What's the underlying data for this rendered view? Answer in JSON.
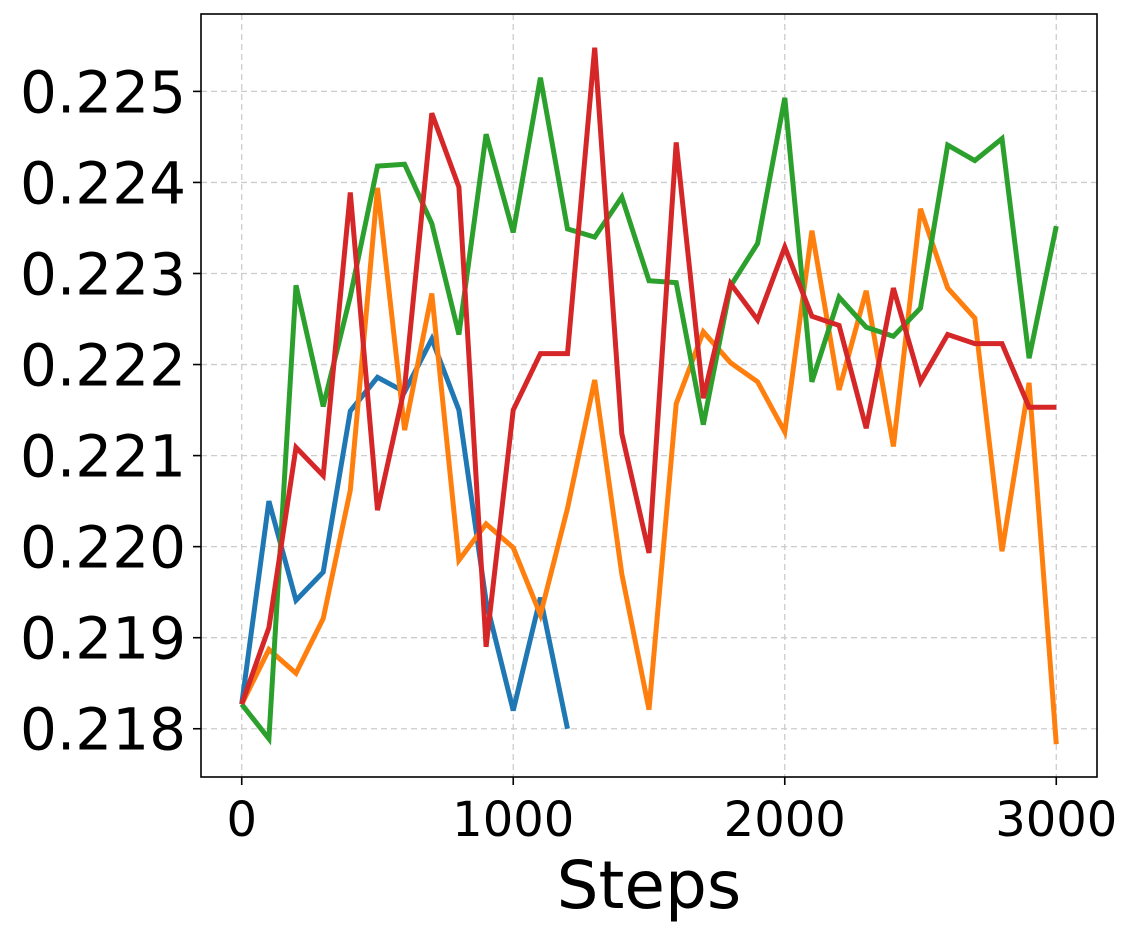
{
  "chart_data": {
    "type": "line",
    "title": "",
    "xlabel": "Steps",
    "ylabel": "",
    "xlim": [
      -150,
      3150
    ],
    "ylim": [
      0.21747,
      0.22585
    ],
    "grid": true,
    "legend": "none",
    "x_ticks": [
      0,
      1000,
      2000,
      3000
    ],
    "x_tick_labels": [
      "0",
      "1000",
      "2000",
      "3000"
    ],
    "y_ticks": [
      0.218,
      0.219,
      0.22,
      0.221,
      0.222,
      0.223,
      0.224,
      0.225
    ],
    "y_tick_labels": [
      "0.218",
      "0.219",
      "0.220",
      "0.221",
      "0.222",
      "0.223",
      "0.224",
      "0.225"
    ],
    "series": [
      {
        "color": "#1f77b4",
        "x": [
          0,
          100,
          200,
          300,
          400,
          500,
          600,
          700,
          800,
          900,
          1000,
          1100,
          1200
        ],
        "y": [
          0.21827,
          0.2205,
          0.21941,
          0.21972,
          0.22149,
          0.22186,
          0.2217,
          0.22228,
          0.2215,
          0.2194,
          0.2182,
          0.21944,
          0.218
        ]
      },
      {
        "color": "#ff7f0e",
        "x": [
          0,
          100,
          200,
          300,
          400,
          500,
          600,
          700,
          800,
          900,
          1000,
          1100,
          1200,
          1300,
          1400,
          1500,
          1600,
          1700,
          1800,
          1900,
          2000,
          2100,
          2200,
          2300,
          2400,
          2500,
          2600,
          2700,
          2800,
          2900,
          3000
        ],
        "y": [
          0.21827,
          0.21887,
          0.21861,
          0.21921,
          0.22062,
          0.22394,
          0.22128,
          0.22278,
          0.21985,
          0.22025,
          0.21999,
          0.21925,
          0.22042,
          0.22183,
          0.2197,
          0.21821,
          0.22157,
          0.22236,
          0.22202,
          0.22181,
          0.22126,
          0.22347,
          0.22172,
          0.22281,
          0.2211,
          0.22371,
          0.22284,
          0.22251,
          0.21995,
          0.2218,
          0.21783
        ]
      },
      {
        "color": "#2ca02c",
        "x": [
          0,
          100,
          200,
          300,
          400,
          500,
          600,
          700,
          800,
          900,
          1000,
          1100,
          1200,
          1300,
          1400,
          1500,
          1600,
          1700,
          1800,
          1900,
          2000,
          2100,
          2200,
          2300,
          2400,
          2500,
          2600,
          2700,
          2800,
          2900,
          3000
        ],
        "y": [
          0.21827,
          0.21789,
          0.22287,
          0.22154,
          0.22275,
          0.22418,
          0.2242,
          0.22355,
          0.22233,
          0.22453,
          0.22345,
          0.22515,
          0.22349,
          0.2234,
          0.22384,
          0.22292,
          0.2229,
          0.22134,
          0.22286,
          0.22333,
          0.22493,
          0.22181,
          0.22274,
          0.22241,
          0.22231,
          0.22262,
          0.22441,
          0.22424,
          0.22448,
          0.22207,
          0.22352
        ]
      },
      {
        "color": "#d62728",
        "x": [
          0,
          100,
          200,
          300,
          400,
          500,
          600,
          700,
          800,
          900,
          1000,
          1100,
          1200,
          1300,
          1400,
          1500,
          1600,
          1700,
          1800,
          1900,
          2000,
          2100,
          2200,
          2300,
          2400,
          2500,
          2600,
          2700,
          2800,
          2900,
          3000
        ],
        "y": [
          0.21827,
          0.21911,
          0.22109,
          0.22078,
          0.22389,
          0.2204,
          0.22175,
          0.22476,
          0.22395,
          0.2189,
          0.2215,
          0.22212,
          0.22212,
          0.22548,
          0.22124,
          0.21993,
          0.22444,
          0.22163,
          0.22289,
          0.22249,
          0.22329,
          0.22253,
          0.22243,
          0.2213,
          0.22284,
          0.22181,
          0.22233,
          0.22223,
          0.22223,
          0.22153,
          0.22153
        ]
      }
    ]
  }
}
